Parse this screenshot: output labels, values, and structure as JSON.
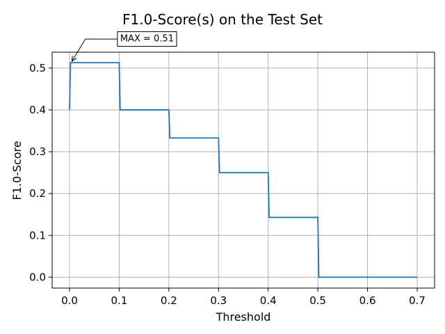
{
  "chart_data": {
    "type": "line",
    "title": "F1.0-Score(s) on the Test Set",
    "xlabel": "Threshold",
    "ylabel": "F1.0-Score",
    "xlim": [
      -0.035,
      0.735
    ],
    "ylim": [
      -0.026,
      0.538
    ],
    "xticks": [
      0.0,
      0.1,
      0.2,
      0.3,
      0.4,
      0.5,
      0.6,
      0.7
    ],
    "xtick_labels": [
      "0.0",
      "0.1",
      "0.2",
      "0.3",
      "0.4",
      "0.5",
      "0.6",
      "0.7"
    ],
    "yticks": [
      0.0,
      0.1,
      0.2,
      0.3,
      0.4,
      0.5
    ],
    "ytick_labels": [
      "0.0",
      "0.1",
      "0.2",
      "0.3",
      "0.4",
      "0.5"
    ],
    "grid": true,
    "line_color": "#1f77b4",
    "series": [
      {
        "x": [
          0.0,
          0.002,
          0.1,
          0.102,
          0.2,
          0.202,
          0.3,
          0.302,
          0.4,
          0.402,
          0.5,
          0.502,
          0.7
        ],
        "y": [
          0.4,
          0.513,
          0.513,
          0.4,
          0.4,
          0.333,
          0.333,
          0.25,
          0.25,
          0.143,
          0.143,
          0.0,
          0.0
        ]
      }
    ],
    "annotation": {
      "text": "MAX = 0.51",
      "point": [
        0.002,
        0.513
      ],
      "text_at": [
        0.095,
        0.572
      ]
    }
  }
}
